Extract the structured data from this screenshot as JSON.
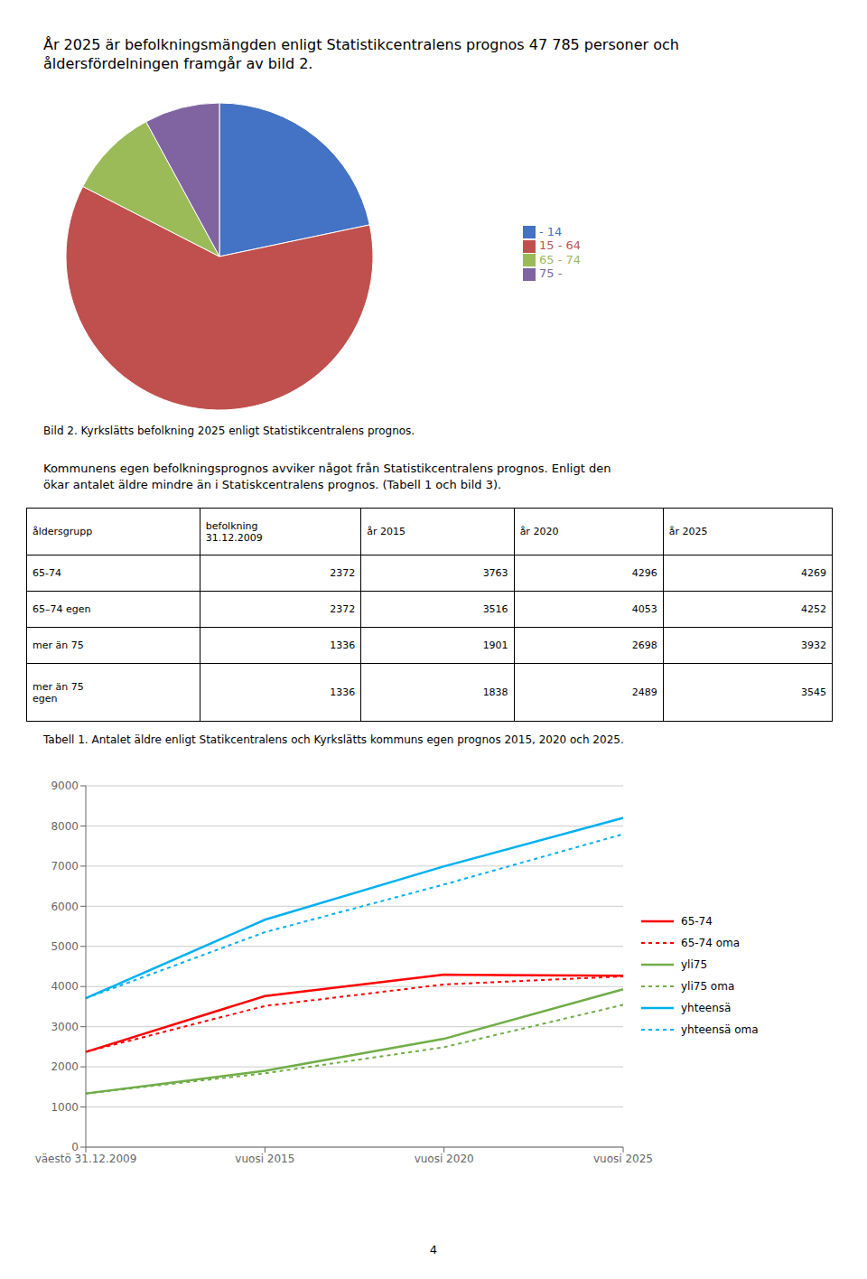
{
  "title": "År 2025 är befolkningsmängden enligt Statistikcentralens prognos 47 785 personer och\nåldersfördelningen framgår av bild 2.",
  "chart_data": [
    {
      "type": "pie",
      "categories": [
        "- 14",
        "15 - 64",
        "65 - 74",
        "75 -"
      ],
      "values": [
        20.5,
        57.5,
        9.0,
        7.5
      ],
      "colors": [
        "#4472C4",
        "#C0504D",
        "#9BBB59",
        "#8064A2"
      ],
      "legend": "right",
      "annotations": [
        "Bild 2. Kyrkslätts befolkning 2025 enligt Statistikcentralens prognos.",
        "Kommunens egen befolkningsprognos avviker något från Statistikcentralens prognos. Enligt den\nökar antalet äldre mindre än i Statiskcentralens prognos. (Tabell 1 och bild 3)."
      ]
    },
    {
      "type": "table",
      "columns": [
        "åldersgrupp",
        "befolkning\n31.12.2009",
        "år 2015",
        "år 2020",
        "år 2025"
      ],
      "rows": [
        [
          "65-74",
          "2372",
          "3763",
          "4296",
          "4269"
        ],
        [
          "65–74 egen",
          "2372",
          "3516",
          "4053",
          "4252"
        ],
        [
          "mer än 75",
          "1336",
          "1901",
          "2698",
          "3932"
        ],
        [
          "mer än 75\negen",
          "1336",
          "1838",
          "2489",
          "3545"
        ]
      ],
      "annotations": [
        "Tabell 1. Antalet äldre enligt Statikcentralens och Kyrkslätts kommuns egen prognos 2015, 2020 och 2025."
      ]
    },
    {
      "type": "line",
      "categories": [
        "väestö 31.12.2009",
        "vuosi 2015",
        "vuosi 2020",
        "vuosi 2025"
      ],
      "series": [
        {
          "name": "65-74",
          "values": [
            2372,
            3763,
            4296,
            4269
          ],
          "color": "#FF0000",
          "line_style": "solid"
        },
        {
          "name": "65-74 oma",
          "values": [
            2372,
            3516,
            4053,
            4252
          ],
          "color": "#FF0000",
          "line_style": "dotted"
        },
        {
          "name": "yli75",
          "values": [
            1336,
            1901,
            2698,
            3932
          ],
          "color": "#70AD47",
          "line_style": "solid"
        },
        {
          "name": "yli75 oma",
          "values": [
            1336,
            1838,
            2489,
            3545
          ],
          "color": "#70AD47",
          "line_style": "dotted"
        },
        {
          "name": "yhteensä",
          "values": [
            3708,
            5664,
            6994,
            8201
          ],
          "color": "#00B0F0",
          "line_style": "solid"
        },
        {
          "name": "yhteensä oma",
          "values": [
            3708,
            5354,
            6542,
            7797
          ],
          "color": "#00B0F0",
          "line_style": "dotted"
        }
      ],
      "ylim": [
        0,
        9000
      ],
      "yticks": [
        0,
        1000,
        2000,
        3000,
        4000,
        5000,
        6000,
        7000,
        8000,
        9000
      ],
      "grid": "y",
      "legend": "right"
    }
  ],
  "annotations": [
    "4"
  ]
}
